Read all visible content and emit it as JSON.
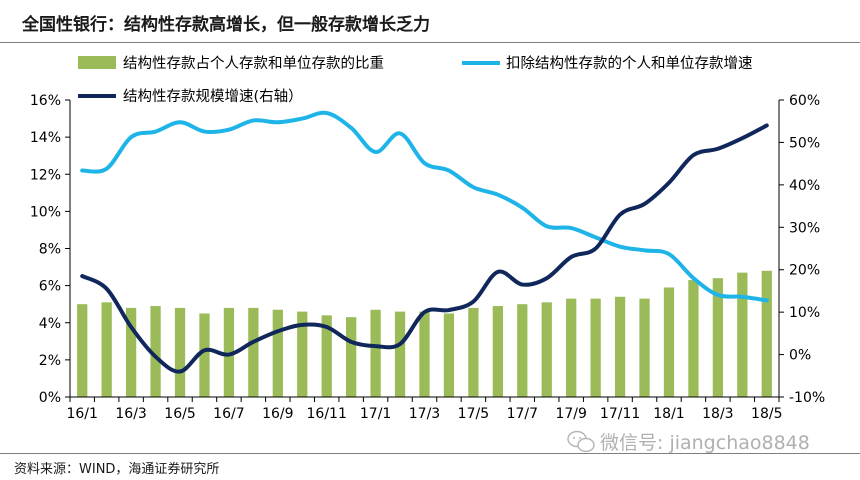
{
  "title": "全国性银行：结构性存款高增长，但一般存款增长乏力",
  "source": "资料来源：WIND，海通证券研究所",
  "watermark": "微信号: jiangchao8848",
  "colors": {
    "bar": "#9bbb59",
    "light_line": "#1fb4e8",
    "dark_line": "#10275c",
    "axis": "#000000"
  },
  "chart_data": {
    "type": "bar+line",
    "x": [
      "16/1",
      "16/2",
      "16/3",
      "16/4",
      "16/5",
      "16/6",
      "16/7",
      "16/8",
      "16/9",
      "16/10",
      "16/11",
      "16/12",
      "17/1",
      "17/2",
      "17/3",
      "17/4",
      "17/5",
      "17/6",
      "17/7",
      "17/8",
      "17/9",
      "17/10",
      "17/11",
      "17/12",
      "18/1",
      "18/2",
      "18/3",
      "18/4",
      "18/5"
    ],
    "xtick_labels": [
      "16/1",
      "16/3",
      "16/5",
      "16/7",
      "16/9",
      "16/11",
      "17/1",
      "17/3",
      "17/5",
      "17/7",
      "17/9",
      "17/11",
      "18/1",
      "18/3",
      "18/5"
    ],
    "left_axis": {
      "range": [
        0,
        16
      ],
      "ticks": [
        "0%",
        "2%",
        "4%",
        "6%",
        "8%",
        "10%",
        "12%",
        "14%",
        "16%"
      ]
    },
    "right_axis": {
      "range": [
        -10,
        60
      ],
      "ticks": [
        "-10%",
        "0%",
        "10%",
        "20%",
        "30%",
        "40%",
        "50%",
        "60%"
      ]
    },
    "legend": [
      {
        "name": "结构性存款占个人存款和单位存款的比重",
        "kind": "bar"
      },
      {
        "name": "扣除结构性存款的个人和单位存款增速",
        "kind": "line-light"
      },
      {
        "name": "结构性存款规模增速(右轴）",
        "kind": "line-dark"
      }
    ],
    "series": [
      {
        "name": "结构性存款占个人存款和单位存款的比重",
        "axis": "left",
        "type": "bar",
        "values": [
          5.0,
          5.1,
          4.8,
          4.9,
          4.8,
          4.5,
          4.8,
          4.8,
          4.7,
          4.6,
          4.4,
          4.3,
          4.7,
          4.6,
          4.6,
          4.5,
          4.8,
          4.9,
          5.0,
          5.1,
          5.3,
          5.3,
          5.4,
          5.3,
          5.9,
          6.3,
          6.4,
          6.7,
          6.8
        ]
      },
      {
        "name": "扣除结构性存款的个人和单位存款增速",
        "axis": "left",
        "type": "line",
        "values": [
          12.2,
          12.3,
          14.0,
          14.3,
          14.8,
          14.3,
          14.4,
          14.9,
          14.8,
          15.0,
          15.3,
          14.5,
          13.2,
          14.2,
          12.6,
          12.2,
          11.3,
          10.9,
          10.2,
          9.2,
          9.1,
          8.6,
          8.1,
          7.9,
          7.7,
          6.4,
          5.5,
          5.4,
          5.2
        ]
      },
      {
        "name": "结构性存款规模增速(右轴）",
        "axis": "right",
        "type": "line",
        "values": [
          18.5,
          15.5,
          6.5,
          -0.5,
          -4.0,
          1.0,
          0.0,
          3.0,
          5.5,
          7.0,
          6.5,
          3.0,
          2.0,
          2.5,
          10.0,
          10.5,
          12.5,
          19.5,
          16.5,
          18.0,
          23.0,
          25.0,
          33.0,
          35.5,
          40.5,
          47.0,
          48.5,
          51.0,
          54.0
        ]
      }
    ]
  }
}
